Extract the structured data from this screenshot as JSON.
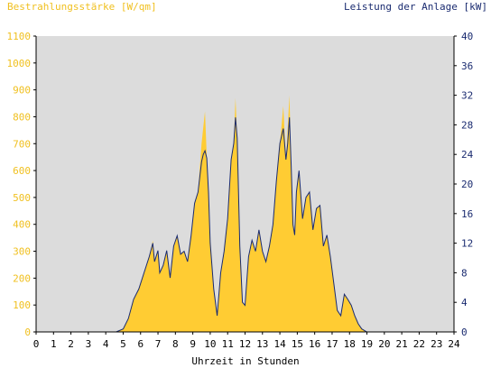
{
  "chart_data": {
    "type": "area",
    "title": "",
    "xlabel": "Uhrzeit in Stunden",
    "ylabel_left": "Bestrahlungsstärke [W/qm]",
    "ylabel_right": "Leistung der Anlage [kW]",
    "xlim": [
      0,
      24
    ],
    "ylim_left": [
      0,
      1100
    ],
    "ylim_right": [
      0,
      40
    ],
    "x_ticks": [
      "0",
      "1",
      "2",
      "3",
      "4",
      "5",
      "6",
      "7",
      "8",
      "9",
      "10",
      "11",
      "12",
      "13",
      "14",
      "15",
      "16",
      "17",
      "18",
      "19",
      "20",
      "21",
      "22",
      "23",
      "24"
    ],
    "y_ticks_left": [
      "0",
      "100",
      "200",
      "300",
      "400",
      "500",
      "600",
      "700",
      "800",
      "900",
      "1000",
      "1100"
    ],
    "y_ticks_right": [
      "0",
      "4",
      "8",
      "12",
      "16",
      "20",
      "24",
      "28",
      "32",
      "36",
      "40"
    ],
    "colors": {
      "irradiance_fill": "#ffcc33",
      "power_line": "#1a2b70",
      "plot_background": "#dcdcdc",
      "left_axis_text": "#f0c020",
      "right_axis_text": "#1a2b70"
    },
    "series": [
      {
        "axis": "left",
        "x": [
          0,
          4.6,
          5.0,
          5.3,
          5.6,
          5.9,
          6.2,
          6.5,
          6.7,
          6.8,
          7.0,
          7.1,
          7.3,
          7.5,
          7.7,
          7.9,
          8.1,
          8.3,
          8.5,
          8.7,
          8.9,
          9.1,
          9.3,
          9.5,
          9.6,
          9.7,
          9.8,
          9.9,
          10.0,
          10.2,
          10.4,
          10.6,
          10.8,
          11.0,
          11.2,
          11.35,
          11.45,
          11.55,
          11.7,
          11.85,
          12.0,
          12.2,
          12.4,
          12.6,
          12.8,
          13.0,
          13.2,
          13.4,
          13.6,
          13.8,
          14.0,
          14.2,
          14.35,
          14.45,
          14.55,
          14.65,
          14.75,
          14.85,
          14.95,
          15.1,
          15.3,
          15.5,
          15.7,
          15.9,
          16.1,
          16.3,
          16.5,
          16.7,
          16.9,
          17.1,
          17.3,
          17.5,
          17.7,
          17.9,
          18.1,
          18.3,
          18.5,
          18.7,
          19.0,
          19.5,
          20.0,
          20.3,
          24
        ],
        "values": [
          0,
          0,
          10,
          50,
          120,
          160,
          220,
          280,
          340,
          260,
          300,
          220,
          250,
          300,
          200,
          320,
          360,
          290,
          300,
          260,
          360,
          480,
          520,
          700,
          760,
          820,
          650,
          520,
          330,
          160,
          60,
          220,
          300,
          420,
          640,
          700,
          870,
          720,
          320,
          110,
          100,
          280,
          340,
          300,
          380,
          300,
          260,
          320,
          400,
          560,
          700,
          840,
          640,
          760,
          880,
          620,
          400,
          360,
          520,
          600,
          420,
          500,
          520,
          380,
          460,
          470,
          320,
          360,
          280,
          180,
          80,
          60,
          140,
          120,
          100,
          60,
          30,
          10,
          0,
          0,
          0,
          0,
          0
        ]
      },
      {
        "axis": "right",
        "x": [
          0,
          4.6,
          5.0,
          5.3,
          5.6,
          5.9,
          6.2,
          6.5,
          6.7,
          6.8,
          7.0,
          7.1,
          7.3,
          7.5,
          7.7,
          7.9,
          8.1,
          8.3,
          8.5,
          8.7,
          8.9,
          9.1,
          9.3,
          9.5,
          9.6,
          9.7,
          9.8,
          9.9,
          10.0,
          10.2,
          10.4,
          10.6,
          10.8,
          11.0,
          11.2,
          11.35,
          11.45,
          11.55,
          11.7,
          11.85,
          12.0,
          12.2,
          12.4,
          12.6,
          12.8,
          13.0,
          13.2,
          13.4,
          13.6,
          13.8,
          14.0,
          14.2,
          14.35,
          14.45,
          14.55,
          14.65,
          14.75,
          14.85,
          14.95,
          15.1,
          15.3,
          15.5,
          15.7,
          15.9,
          16.1,
          16.3,
          16.5,
          16.7,
          16.9,
          17.1,
          17.3,
          17.5,
          17.7,
          17.9,
          18.1,
          18.3,
          18.5,
          18.7,
          19.0,
          19.5,
          20.0,
          20.3,
          24
        ],
        "values": [
          0,
          0,
          0.4,
          1.8,
          4.4,
          5.8,
          8.0,
          10.2,
          12.0,
          9.5,
          11.0,
          8.0,
          9.0,
          11.0,
          7.3,
          11.6,
          13.0,
          10.5,
          10.9,
          9.5,
          13.0,
          17.4,
          18.9,
          23.0,
          24.0,
          24.5,
          23.5,
          18.9,
          12.0,
          5.8,
          2.2,
          8.0,
          10.9,
          15.3,
          23.3,
          25.5,
          29.0,
          26.2,
          11.6,
          4.0,
          3.6,
          10.2,
          12.4,
          10.9,
          13.8,
          10.9,
          9.5,
          11.6,
          14.5,
          20.4,
          25.5,
          27.5,
          23.3,
          25.5,
          29.0,
          22.5,
          14.5,
          13.1,
          18.9,
          21.8,
          15.3,
          18.2,
          18.9,
          13.8,
          16.7,
          17.1,
          11.6,
          13.1,
          10.2,
          6.5,
          2.9,
          2.2,
          5.1,
          4.4,
          3.6,
          2.2,
          1.1,
          0.4,
          0,
          0,
          0,
          0,
          0
        ]
      }
    ]
  }
}
